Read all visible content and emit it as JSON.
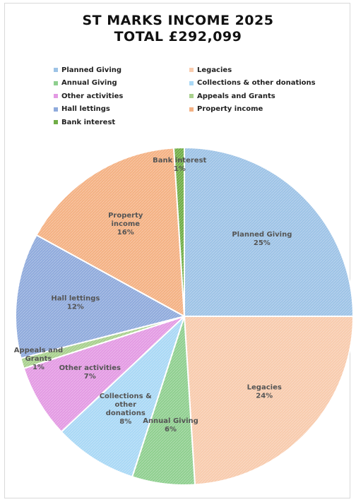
{
  "chart_data": {
    "type": "pie",
    "title": "ST MARKS INCOME 2025",
    "subtitle": "TOTAL £292,099",
    "legend_position": "top",
    "slices": [
      {
        "name": "Planned Giving",
        "label_lines": [
          "Planned Giving",
          "25%"
        ],
        "percent": 25,
        "color": "#9dc3e6"
      },
      {
        "name": "Legacies",
        "label_lines": [
          "Legacies",
          "24%"
        ],
        "percent": 24,
        "color": "#f8cbad"
      },
      {
        "name": "Annual Giving",
        "label_lines": [
          "Annual Giving",
          "6%"
        ],
        "percent": 6,
        "color": "#8fcf8f"
      },
      {
        "name": "Collections & other donations",
        "label_lines": [
          "Collections &",
          "other",
          "donations",
          "8%"
        ],
        "percent": 8,
        "color": "#a9d8f5"
      },
      {
        "name": "Other activities",
        "label_lines": [
          "Other activities",
          "7%"
        ],
        "percent": 7,
        "color": "#e39ae3"
      },
      {
        "name": "Appeals and Grants",
        "label_lines": [
          "Appeals and",
          "Grants",
          "1%"
        ],
        "percent": 1,
        "color": "#a8d08d"
      },
      {
        "name": "Hall lettings",
        "label_lines": [
          "Hall lettings",
          "12%"
        ],
        "percent": 12,
        "color": "#8faadc"
      },
      {
        "name": "Property income",
        "label_lines": [
          "Property",
          "income",
          "16%"
        ],
        "percent": 16,
        "color": "#f4b183"
      },
      {
        "name": "Bank interest",
        "label_lines": [
          "Bank interest",
          "1%"
        ],
        "percent": 1,
        "color": "#70ad47"
      }
    ]
  }
}
